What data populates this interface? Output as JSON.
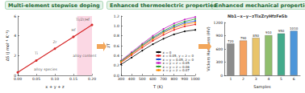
{
  "chart_data": [
    {
      "type": "line",
      "title": "Multi-element stepwise doping",
      "x_label": "x + y + z",
      "y_label": "ΔS (J mol⁻¹ K⁻¹)",
      "x": [
        0,
        0.05,
        0.1,
        0.15,
        0.2
      ],
      "values": [
        0.3,
        1.5,
        2.7,
        3.9,
        5.1
      ],
      "color": "#d62728",
      "marker": "circle",
      "xlim": [
        0,
        0.2
      ],
      "xticks": [
        {
          "value": 0,
          "label": "0.00"
        },
        {
          "value": 0.05,
          "label": "0.05"
        },
        {
          "value": 0.1,
          "label": "0.10"
        },
        {
          "value": 0.15,
          "label": "0.15"
        },
        {
          "value": 0.2,
          "label": "0.20"
        }
      ],
      "ylim": [
        0,
        6
      ],
      "yticks": [
        0,
        2,
        4,
        6
      ],
      "highlight_range": [
        0.16,
        0.2
      ],
      "annotations": [
        {
          "text": "Ti",
          "x": 0.05,
          "y": 2.2
        },
        {
          "text": "Zr",
          "x": 0.1,
          "y": 3.4
        },
        {
          "text": "Hf",
          "x": 0.15,
          "y": 4.6
        },
        {
          "text": "Ti/Zr/Hf",
          "x": 0.175,
          "y": 5.6
        },
        {
          "text": "alloy species",
          "x": 0.075,
          "y": 0.6
        },
        {
          "text": "alloy content",
          "x": 0.18,
          "y": 2.0
        }
      ],
      "grid": false
    },
    {
      "type": "line",
      "title": "Enhanced thermoelectric properties",
      "x_label": "T (K)",
      "y_label": "zT",
      "x": [
        300,
        400,
        500,
        600,
        700,
        800,
        900,
        1000
      ],
      "series": [
        {
          "name": "x = 0",
          "color": "#000000",
          "values": [
            0.22,
            0.36,
            0.5,
            0.63,
            0.74,
            0.83,
            0.89,
            0.92
          ]
        },
        {
          "name": "x = 0.05, y = z = 0",
          "color": "#e41a1c",
          "values": [
            0.26,
            0.41,
            0.56,
            0.7,
            0.82,
            0.92,
            0.99,
            1.03
          ]
        },
        {
          "name": "x = y = 0.05, z = 0",
          "color": "#1f4fd6",
          "values": [
            0.28,
            0.44,
            0.6,
            0.75,
            0.88,
            0.98,
            1.06,
            1.1
          ]
        },
        {
          "name": "x = y = z = 0.05",
          "color": "#c51bc5",
          "values": [
            0.3,
            0.47,
            0.64,
            0.8,
            0.94,
            1.05,
            1.13,
            1.18
          ]
        },
        {
          "name": "x = y = z = 0.06",
          "color": "#2ca02c",
          "values": [
            0.29,
            0.45,
            0.62,
            0.77,
            0.9,
            1.01,
            1.09,
            1.14
          ]
        },
        {
          "name": "x = y = z = 0.07",
          "color": "#ff8c00",
          "values": [
            0.27,
            0.43,
            0.59,
            0.73,
            0.86,
            0.96,
            1.03,
            1.07
          ]
        }
      ],
      "marker": "circle",
      "xlim": [
        300,
        1000
      ],
      "xticks": [
        300,
        400,
        500,
        600,
        700,
        800,
        900,
        1000
      ],
      "ylim": [
        0,
        1.2
      ],
      "yticks": [
        {
          "value": 0,
          "label": "0.0"
        },
        {
          "value": 0.2,
          "label": "0.2"
        },
        {
          "value": 0.4,
          "label": "0.4"
        },
        {
          "value": 0.6,
          "label": "0.6"
        },
        {
          "value": 0.8,
          "label": "0.8"
        },
        {
          "value": 1.0,
          "label": "1.0"
        },
        {
          "value": 1.2,
          "label": "1.2"
        }
      ],
      "legend": "lower right",
      "grid": false
    },
    {
      "type": "bar",
      "title": "Enhanced mechanical properties",
      "subtitle": "Nb1−x−y−zTixZryHfzFeSb",
      "x_label": "Samples",
      "y_label": "Vickers Hardness (HV)",
      "categories": [
        "1",
        "2",
        "3",
        "4",
        "5",
        "6"
      ],
      "values": [
        720,
        790,
        850,
        910,
        950,
        1010
      ],
      "colors": [
        "#8c8c8c",
        "#f4a261",
        "#e9c46a",
        "#90be6d",
        "#43aa8b",
        "#4d96d9"
      ],
      "ylim": [
        0,
        1200
      ],
      "yticks": [
        0,
        300,
        600,
        900,
        1200
      ],
      "data_labels": true,
      "grid": false
    }
  ]
}
